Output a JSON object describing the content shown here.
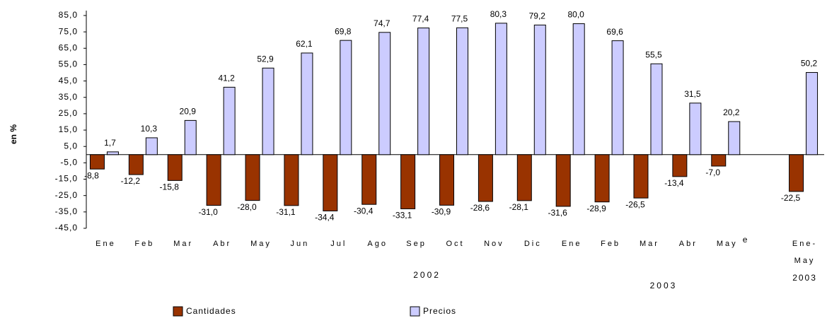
{
  "chart_data": {
    "type": "bar",
    "y_label": "en %",
    "categories": [
      "Ene",
      "Feb",
      "Mar",
      "Abr",
      "May",
      "Jun",
      "Jul",
      "Ago",
      "Sep",
      "Oct",
      "Nov",
      "Dic",
      "Ene",
      "Feb",
      "Mar",
      "Abr",
      "May",
      null,
      "Ene-May"
    ],
    "series": [
      {
        "name": "Cantidades",
        "color": "#993300",
        "values": [
          -8.8,
          -12.2,
          -15.8,
          -31.0,
          -28.0,
          -31.1,
          -34.4,
          -30.4,
          -33.1,
          -30.9,
          -28.6,
          -28.1,
          -31.6,
          -28.9,
          -26.5,
          -13.4,
          -7.0,
          null,
          -22.5
        ],
        "value_labels": [
          "-8,8",
          "-12,2",
          "-15,8",
          "-31,0",
          "-28,0",
          "-31,1",
          "-34,4",
          "-30,4",
          "-33,1",
          "-30,9",
          "-28,6",
          "-28,1",
          "-31,6",
          "-28,9",
          "-26,5",
          "-13,4",
          "-7,0",
          null,
          "-22,5"
        ]
      },
      {
        "name": "Precios",
        "color": "#ccccff",
        "values": [
          1.7,
          10.3,
          20.9,
          41.2,
          52.9,
          62.1,
          69.8,
          74.7,
          77.4,
          77.5,
          80.3,
          79.2,
          80.0,
          69.6,
          55.5,
          31.5,
          20.2,
          null,
          50.2
        ],
        "value_labels": [
          "1,7",
          "10,3",
          "20,9",
          "41,2",
          "52,9",
          "62,1",
          "69,8",
          "74,7",
          "77,4",
          "77,5",
          "80,3",
          "79,2",
          "80,0",
          "69,6",
          "55,5",
          "31,5",
          "20,2",
          null,
          "50,2"
        ]
      }
    ],
    "annotations": [
      "e",
      "2002",
      "2003",
      "2003"
    ],
    "ylim": [
      -45,
      88
    ],
    "yticks": [
      {
        "value": -45,
        "label": "-45,0"
      },
      {
        "value": -35,
        "label": "-35,0"
      },
      {
        "value": -25,
        "label": "-25,0"
      },
      {
        "value": -15,
        "label": "-15,0"
      },
      {
        "value": -5,
        "label": "-5,0"
      },
      {
        "value": 5,
        "label": "5,0"
      },
      {
        "value": 15,
        "label": "15,0"
      },
      {
        "value": 25,
        "label": "25,0"
      },
      {
        "value": 35,
        "label": "35,0"
      },
      {
        "value": 45,
        "label": "45,0"
      },
      {
        "value": 55,
        "label": "55,0"
      },
      {
        "value": 65,
        "label": "65,0"
      },
      {
        "value": 75,
        "label": "75,0"
      },
      {
        "value": 85,
        "label": "85,0"
      }
    ],
    "legend": "bottom",
    "grid": false
  }
}
